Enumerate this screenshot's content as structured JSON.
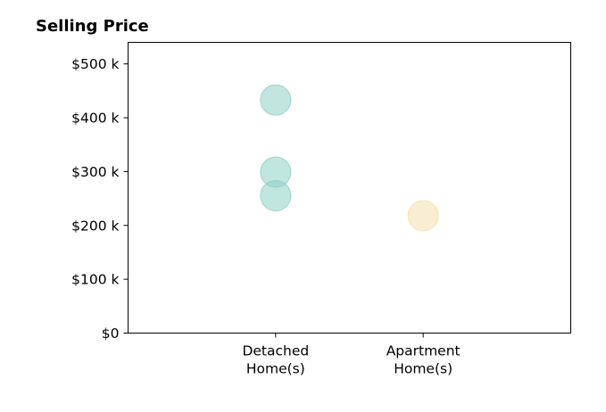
{
  "chart_data": {
    "type": "scatter",
    "title": "Selling Price",
    "xlabel": "",
    "ylabel": "",
    "categories": [
      [
        "Detached",
        "Home(s)"
      ],
      [
        "Apartment",
        "Home(s)"
      ]
    ],
    "x_range": [
      -1,
      2
    ],
    "ylim": [
      0,
      540000
    ],
    "y_ticks": [
      {
        "value": 0,
        "label": "$0"
      },
      {
        "value": 100000,
        "label": "$100 k"
      },
      {
        "value": 200000,
        "label": "$200 k"
      },
      {
        "value": 300000,
        "label": "$300 k"
      },
      {
        "value": 400000,
        "label": "$400 k"
      },
      {
        "value": 500000,
        "label": "$500 k"
      }
    ],
    "grid": false,
    "legend": "none",
    "series": [
      {
        "color": "#8ecfc5",
        "points": [
          {
            "category_index": 0,
            "y": 433000
          },
          {
            "category_index": 0,
            "y": 299000
          },
          {
            "category_index": 0,
            "y": 255000
          }
        ]
      },
      {
        "color": "#f4dfb0",
        "points": [
          {
            "category_index": 1,
            "y": 218000
          }
        ]
      }
    ]
  }
}
